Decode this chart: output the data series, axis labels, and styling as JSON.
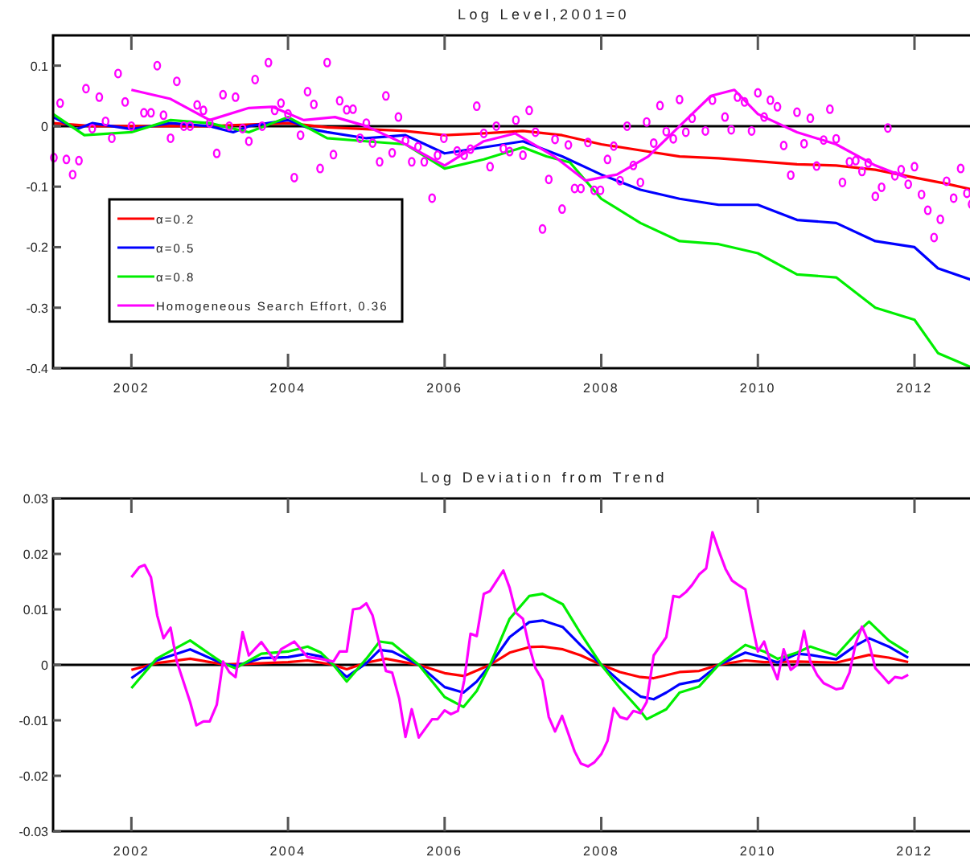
{
  "chart_data": [
    {
      "type": "line",
      "title": "Log Level,2001=0",
      "xlim": [
        2001,
        2012.75
      ],
      "xticks": [
        2002,
        2004,
        2006,
        2008,
        2010,
        2012
      ],
      "ylim": [
        -0.4,
        0.15
      ],
      "yticks": [
        -0.4,
        -0.3,
        -0.2,
        -0.1,
        0,
        0.1
      ],
      "grid": false,
      "legend": "bottom left",
      "ref_lines": [
        {
          "axis": "y",
          "value": 0,
          "color": "#000000"
        }
      ],
      "series": [
        {
          "name": "α=0.2",
          "color": "#ff0000",
          "x": [
            2001,
            2001.5,
            2002,
            2003,
            2004,
            2004.5,
            2005,
            2005.5,
            2006,
            2006.5,
            2007,
            2007.5,
            2008,
            2008.5,
            2009,
            2009.5,
            2010,
            2010.5,
            2011,
            2011.5,
            2012,
            2012.4,
            2012.75
          ],
          "values": [
            0.005,
            0,
            0,
            0,
            0.005,
            -0.002,
            -0.005,
            -0.008,
            -0.015,
            -0.012,
            -0.008,
            -0.015,
            -0.03,
            -0.04,
            -0.05,
            -0.053,
            -0.058,
            -0.063,
            -0.065,
            -0.072,
            -0.085,
            -0.095,
            -0.105
          ]
        },
        {
          "name": "α=0.5",
          "color": "#0000ff",
          "x": [
            2001,
            2001.3,
            2001.5,
            2002,
            2002.5,
            2003,
            2003.3,
            2003.5,
            2004,
            2004.3,
            2004.5,
            2005,
            2005.5,
            2006,
            2006.5,
            2007,
            2007.5,
            2008,
            2008.5,
            2009,
            2009.5,
            2010,
            2010.5,
            2011,
            2011.5,
            2012,
            2012.3,
            2012.75
          ],
          "values": [
            0.015,
            -0.005,
            0.005,
            -0.005,
            0.005,
            0,
            -0.01,
            0,
            0.01,
            -0.005,
            -0.01,
            -0.02,
            -0.015,
            -0.045,
            -0.035,
            -0.025,
            -0.05,
            -0.08,
            -0.105,
            -0.12,
            -0.13,
            -0.13,
            -0.155,
            -0.16,
            -0.19,
            -0.2,
            -0.235,
            -0.255
          ]
        },
        {
          "name": "α=0.8",
          "color": "#00ee00",
          "x": [
            2001,
            2001.4,
            2002,
            2002.5,
            2003,
            2003.5,
            2004,
            2004.5,
            2005,
            2005.5,
            2006,
            2006.5,
            2007,
            2007.3,
            2007.6,
            2008,
            2008.5,
            2009,
            2009.5,
            2010,
            2010.5,
            2011,
            2011.5,
            2012,
            2012.3,
            2012.75
          ],
          "values": [
            0.02,
            -0.015,
            -0.01,
            0.01,
            0.005,
            -0.01,
            0.015,
            -0.02,
            -0.025,
            -0.03,
            -0.07,
            -0.055,
            -0.035,
            -0.05,
            -0.06,
            -0.12,
            -0.16,
            -0.19,
            -0.195,
            -0.21,
            -0.245,
            -0.25,
            -0.3,
            -0.32,
            -0.375,
            -0.4
          ]
        },
        {
          "name": "Homogeneous Search Effort, 0.36",
          "color": "#ff00ff",
          "x": [
            2002,
            2002.5,
            2003,
            2003.5,
            2003.8,
            2004.2,
            2004.6,
            2005,
            2005.5,
            2006,
            2006.5,
            2006.9,
            2007.4,
            2007.8,
            2008.2,
            2008.6,
            2009,
            2009.4,
            2009.7,
            2010,
            2010.5,
            2011,
            2011.5,
            2011.9
          ],
          "values": [
            0.06,
            0.045,
            0.01,
            0.03,
            0.032,
            0.01,
            0.015,
            0,
            -0.03,
            -0.065,
            -0.025,
            -0.012,
            -0.05,
            -0.09,
            -0.08,
            -0.05,
            0,
            0.05,
            0.06,
            0.02,
            -0.01,
            -0.03,
            -0.065,
            -0.085
          ]
        },
        {
          "type": "scatter",
          "marker": "circle",
          "color": "#ff00ff",
          "x": [
            2001.01,
            2001.09,
            2001.17,
            2001.25,
            2001.33,
            2001.42,
            2001.5,
            2001.59,
            2001.67,
            2001.75,
            2001.83,
            2001.92,
            2002,
            2002.16,
            2002.25,
            2002.33,
            2002.41,
            2002.5,
            2002.58,
            2002.67,
            2002.75,
            2002.84,
            2002.92,
            2003,
            2003.09,
            2003.17,
            2003.25,
            2003.33,
            2003.42,
            2003.5,
            2003.58,
            2003.67,
            2003.75,
            2003.83,
            2003.91,
            2004,
            2004.08,
            2004.16,
            2004.25,
            2004.33,
            2004.41,
            2004.5,
            2004.58,
            2004.66,
            2004.75,
            2004.83,
            2004.92,
            2005,
            2005.08,
            2005.17,
            2005.25,
            2005.33,
            2005.41,
            2005.5,
            2005.58,
            2005.66,
            2005.74,
            2005.84,
            2005.91,
            2005.99,
            2006.16,
            2006.25,
            2006.33,
            2006.41,
            2006.5,
            2006.58,
            2006.66,
            2006.75,
            2006.83,
            2006.91,
            2007,
            2007.08,
            2007.16,
            2007.25,
            2007.33,
            2007.41,
            2007.5,
            2007.58,
            2007.66,
            2007.74,
            2007.83,
            2007.91,
            2007.99,
            2008.08,
            2008.16,
            2008.24,
            2008.33,
            2008.41,
            2008.5,
            2008.58,
            2008.67,
            2008.75,
            2008.83,
            2008.92,
            2009,
            2009.08,
            2009.16,
            2009.33,
            2009.42,
            2009.58,
            2009.66,
            2009.74,
            2009.83,
            2009.92,
            2010,
            2010.08,
            2010.16,
            2010.25,
            2010.33,
            2010.42,
            2010.5,
            2010.59,
            2010.67,
            2010.75,
            2010.84,
            2010.92,
            2011,
            2011.08,
            2011.17,
            2011.25,
            2011.33,
            2011.41,
            2011.5,
            2011.58,
            2011.66,
            2011.75,
            2011.83,
            2011.92,
            2012,
            2012.09,
            2012.17,
            2012.25,
            2012.33,
            2012.41,
            2012.5,
            2012.59,
            2012.67,
            2012.73
          ],
          "values": [
            -0.052,
            0.038,
            -0.055,
            -0.08,
            -0.057,
            0.062,
            -0.004,
            0.048,
            0.008,
            -0.02,
            0.087,
            0.04,
            0,
            0.022,
            0.022,
            0.1,
            0.018,
            -0.02,
            0.074,
            0,
            0,
            0.035,
            0.026,
            0.005,
            -0.045,
            0.052,
            0,
            0.048,
            -0.004,
            -0.025,
            0.077,
            0,
            0.105,
            0.026,
            0.038,
            0.02,
            -0.085,
            -0.015,
            0.057,
            0.036,
            -0.07,
            0.105,
            -0.047,
            0.042,
            0.027,
            0.028,
            -0.02,
            0.005,
            -0.028,
            -0.059,
            0.05,
            -0.044,
            0.015,
            -0.024,
            -0.059,
            -0.034,
            -0.059,
            -0.119,
            -0.048,
            -0.02,
            -0.041,
            -0.048,
            -0.038,
            0.033,
            -0.012,
            -0.067,
            0,
            -0.037,
            -0.042,
            0.01,
            -0.048,
            0.026,
            -0.01,
            -0.17,
            -0.088,
            -0.022,
            -0.137,
            -0.031,
            -0.103,
            -0.103,
            -0.027,
            -0.106,
            -0.106,
            -0.055,
            -0.033,
            -0.09,
            0,
            -0.065,
            -0.093,
            0.007,
            -0.028,
            0.034,
            -0.009,
            -0.021,
            0.044,
            -0.01,
            0.013,
            -0.008,
            0.043,
            0.015,
            -0.006,
            0.048,
            0.04,
            -0.008,
            0.055,
            0.015,
            0.043,
            0.032,
            -0.032,
            -0.081,
            0.023,
            -0.029,
            0.013,
            -0.066,
            -0.023,
            0.028,
            -0.021,
            -0.093,
            -0.059,
            -0.057,
            -0.075,
            -0.061,
            -0.116,
            -0.101,
            -0.003,
            -0.082,
            -0.072,
            -0.096,
            -0.067,
            -0.113,
            -0.139,
            -0.184,
            -0.154,
            -0.091,
            -0.119,
            -0.07,
            -0.111,
            -0.129
          ]
        }
      ]
    },
    {
      "type": "line",
      "title": "Log Deviation from Trend",
      "xlim": [
        2001,
        2012.75
      ],
      "xticks": [
        2002,
        2004,
        2006,
        2008,
        2010,
        2012
      ],
      "ylim": [
        -0.03,
        0.03
      ],
      "yticks": [
        -0.03,
        -0.02,
        -0.01,
        0,
        0.01,
        0.02,
        0.03
      ],
      "grid": false,
      "legend": false,
      "ref_lines": [
        {
          "axis": "y",
          "value": 0,
          "color": "#000000"
        }
      ],
      "series": [
        {
          "color": "#ff0000",
          "x": [
            2002,
            2002.32,
            2002.75,
            2003.17,
            2003.5,
            2004,
            2004.25,
            2004.58,
            2004.75,
            2005,
            2005.25,
            2005.67,
            2006,
            2006.25,
            2006.58,
            2006.83,
            2007.08,
            2007.25,
            2007.51,
            2007.74,
            2008,
            2008.24,
            2008.5,
            2008.67,
            2009,
            2009.25,
            2009.5,
            2009.84,
            2010.08,
            2010.5,
            2011,
            2011.42,
            2011.67,
            2011.92
          ],
          "values": [
            -0.0009,
            0.0003,
            0.0011,
            0.0001,
            0.0002,
            0.0005,
            0.0008,
            0,
            -0.0008,
            0.0004,
            0.0011,
            0,
            -0.0015,
            -0.002,
            0,
            0.0022,
            0.0032,
            0.0033,
            0.0028,
            0.0017,
            0,
            -0.0013,
            -0.0022,
            -0.0024,
            -0.0013,
            -0.0011,
            0,
            0.0008,
            0.0005,
            0.0006,
            0.0004,
            0.0018,
            0.0013,
            0.0005
          ]
        },
        {
          "color": "#0000ff",
          "x": [
            2002,
            2002.32,
            2002.75,
            2003.17,
            2003.33,
            2003.66,
            2004,
            2004.25,
            2004.42,
            2004.58,
            2004.75,
            2005,
            2005.17,
            2005.33,
            2005.67,
            2006,
            2006.24,
            2006.41,
            2006.58,
            2006.83,
            2007.08,
            2007.25,
            2007.51,
            2007.74,
            2008,
            2008.24,
            2008.5,
            2008.67,
            2008.83,
            2009,
            2009.25,
            2009.5,
            2009.84,
            2010.08,
            2010.25,
            2010.5,
            2010.67,
            2011,
            2011.25,
            2011.42,
            2011.67,
            2011.92
          ],
          "values": [
            -0.0024,
            0.0008,
            0.0028,
            0.0002,
            -0.0002,
            0.0012,
            0.0014,
            0.002,
            0.0015,
            0,
            -0.0022,
            0.0003,
            0.0027,
            0.0024,
            0,
            -0.004,
            -0.005,
            -0.003,
            0,
            0.005,
            0.0077,
            0.008,
            0.0068,
            0.0035,
            0,
            -0.003,
            -0.0057,
            -0.0062,
            -0.005,
            -0.0035,
            -0.0028,
            0,
            0.0022,
            0.0013,
            0.0004,
            0.002,
            0.0018,
            0.001,
            0.0035,
            0.0048,
            0.0033,
            0.0013
          ]
        },
        {
          "color": "#00ee00",
          "x": [
            2002,
            2002.32,
            2002.75,
            2003.17,
            2003.33,
            2003.66,
            2004,
            2004.25,
            2004.42,
            2004.58,
            2004.75,
            2005,
            2005.17,
            2005.33,
            2005.67,
            2006,
            2006.24,
            2006.41,
            2006.58,
            2006.83,
            2007.08,
            2007.25,
            2007.51,
            2007.74,
            2008,
            2008.24,
            2008.5,
            2008.58,
            2008.83,
            2009,
            2009.25,
            2009.5,
            2009.84,
            2010.08,
            2010.25,
            2010.5,
            2010.67,
            2011,
            2011.25,
            2011.42,
            2011.67,
            2011.92
          ],
          "values": [
            -0.0042,
            0.0011,
            0.0044,
            0.0003,
            -0.0006,
            0.002,
            0.0024,
            0.0033,
            0.0022,
            0,
            -0.003,
            0.0011,
            0.0042,
            0.0039,
            0,
            -0.0058,
            -0.0076,
            -0.0047,
            0,
            0.0083,
            0.0124,
            0.0128,
            0.0109,
            0.0056,
            0,
            -0.0042,
            -0.0083,
            -0.0098,
            -0.008,
            -0.005,
            -0.0039,
            0,
            0.0036,
            0.0024,
            0.0011,
            0.0022,
            0.0033,
            0.0017,
            0.0056,
            0.0078,
            0.0044,
            0.0022
          ]
        },
        {
          "color": "#ff00ff",
          "x": [
            2002,
            2002.1,
            2002.17,
            2002.25,
            2002.33,
            2002.41,
            2002.5,
            2002.58,
            2002.75,
            2002.83,
            2002.92,
            2003,
            2003.09,
            2003.17,
            2003.25,
            2003.33,
            2003.42,
            2003.5,
            2003.66,
            2003.83,
            2003.91,
            2004.08,
            2004.25,
            2004.41,
            2004.58,
            2004.66,
            2004.75,
            2004.83,
            2004.92,
            2005,
            2005.08,
            2005.25,
            2005.33,
            2005.42,
            2005.5,
            2005.58,
            2005.67,
            2005.84,
            2005.91,
            2006,
            2006.08,
            2006.17,
            2006.25,
            2006.33,
            2006.41,
            2006.5,
            2006.58,
            2006.75,
            2006.83,
            2006.91,
            2007,
            2007.07,
            2007.16,
            2007.25,
            2007.33,
            2007.41,
            2007.5,
            2007.66,
            2007.74,
            2007.83,
            2007.91,
            2008,
            2008.08,
            2008.16,
            2008.24,
            2008.33,
            2008.41,
            2008.5,
            2008.58,
            2008.67,
            2008.83,
            2008.92,
            2009,
            2009.08,
            2009.16,
            2009.25,
            2009.34,
            2009.42,
            2009.5,
            2009.59,
            2009.67,
            2009.75,
            2009.84,
            2009.92,
            2010,
            2010.08,
            2010.16,
            2010.25,
            2010.33,
            2010.42,
            2010.5,
            2010.59,
            2010.67,
            2010.76,
            2010.84,
            2011,
            2011.08,
            2011.17,
            2011.25,
            2011.33,
            2011.42,
            2011.5,
            2011.59,
            2011.67,
            2011.75,
            2011.84,
            2011.92
          ],
          "values": [
            0.0158,
            0.0176,
            0.018,
            0.0158,
            0.0089,
            0.0048,
            0.0067,
            0.0006,
            -0.0067,
            -0.0109,
            -0.0102,
            -0.0102,
            -0.0072,
            0.0006,
            -0.0013,
            -0.0022,
            0.0059,
            0.0017,
            0.0041,
            0.0008,
            0.0028,
            0.0042,
            0.0014,
            0.0011,
            0.0006,
            0.0024,
            0.0024,
            0.01,
            0.0102,
            0.0111,
            0.0089,
            -0.0011,
            -0.0014,
            -0.0061,
            -0.013,
            -0.008,
            -0.0131,
            -0.0098,
            -0.0098,
            -0.0082,
            -0.0089,
            -0.0083,
            -0.0028,
            0.0056,
            0.0052,
            0.0128,
            0.0133,
            0.017,
            0.0139,
            0.0094,
            0.0083,
            0.0039,
            -0.0006,
            -0.0028,
            -0.0094,
            -0.012,
            -0.0092,
            -0.0156,
            -0.0178,
            -0.0183,
            -0.0176,
            -0.0161,
            -0.0137,
            -0.0078,
            -0.0094,
            -0.0098,
            -0.0083,
            -0.0087,
            -0.0067,
            0.0017,
            0.005,
            0.0124,
            0.0122,
            0.0131,
            0.0144,
            0.0163,
            0.0174,
            0.0239,
            0.0206,
            0.0172,
            0.0152,
            0.0144,
            0.0136,
            0.0078,
            0.0024,
            0.0042,
            0.0006,
            -0.0026,
            0.0028,
            -0.0009,
            0,
            0.0061,
            0.0006,
            -0.0019,
            -0.0033,
            -0.0044,
            -0.0042,
            -0.0014,
            0.0039,
            0.0069,
            0.0039,
            -0.0006,
            -0.002,
            -0.0033,
            -0.0022,
            -0.0024,
            -0.0018
          ]
        }
      ]
    }
  ]
}
